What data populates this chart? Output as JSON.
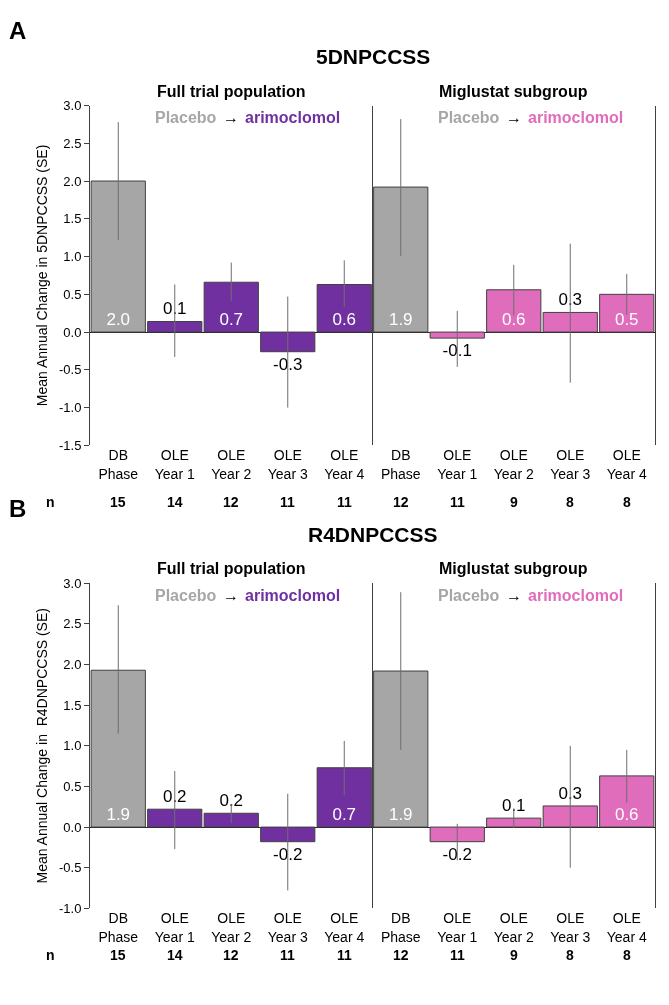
{
  "chart_data": [
    {
      "type": "bar",
      "title": "5DNPCCSS",
      "subtitle": "Full trial population",
      "ylabel": "Mean Annual Change in 5DNPCCSS (SE)",
      "categories": [
        "DB Phase",
        "OLE Year 1",
        "OLE Year 2",
        "OLE Year 3",
        "OLE Year 4"
      ],
      "series": [
        {
          "name": "Placebo",
          "color": "#a6a6a6",
          "values": [
            2.0,
            null,
            null,
            null,
            null
          ],
          "errors": [
            [
              1.22,
              2.78
            ],
            null,
            null,
            null,
            null
          ],
          "value_labels": [
            "2.0",
            null,
            null,
            null,
            null
          ]
        },
        {
          "name": "arimoclomol",
          "color": "#7030a0",
          "values": [
            null,
            0.14,
            0.66,
            -0.26,
            0.63
          ],
          "errors": [
            null,
            [
              -0.33,
              0.63
            ],
            [
              0.41,
              0.92
            ],
            [
              -1.0,
              0.47
            ],
            [
              0.33,
              0.95
            ]
          ],
          "value_labels": [
            null,
            "0.1",
            "0.7",
            "-0.3",
            "0.6"
          ]
        }
      ],
      "ylim": [
        -1.5,
        3.0
      ],
      "yticks": [
        {
          "value": -1.5,
          "label": "-1.5"
        },
        {
          "value": -1.0,
          "label": "-1.0"
        },
        {
          "value": -0.5,
          "label": "-0.5"
        },
        {
          "value": 0,
          "label": "0.0"
        },
        {
          "value": 0.5,
          "label": "0.5"
        },
        {
          "value": 1.0,
          "label": "1.0"
        },
        {
          "value": 1.5,
          "label": "1.5"
        },
        {
          "value": 2.0,
          "label": "2.0"
        },
        {
          "value": 2.5,
          "label": "2.5"
        },
        {
          "value": 3.0,
          "label": "3.0"
        }
      ],
      "annotations": [
        "A",
        "→",
        "n",
        "15",
        "14",
        "12",
        "11",
        "11"
      ],
      "legend": "top"
    },
    {
      "type": "bar",
      "subtitle": "Miglustat subgroup",
      "categories": [
        "DB Phase",
        "OLE Year 1",
        "OLE Year 2",
        "OLE Year 3",
        "OLE Year 4"
      ],
      "series": [
        {
          "name": "Placebo",
          "color": "#a6a6a6",
          "values": [
            1.92,
            null,
            null,
            null,
            null
          ],
          "errors": [
            [
              1.01,
              2.82
            ],
            null,
            null,
            null,
            null
          ],
          "value_labels": [
            "1.9",
            null,
            null,
            null,
            null
          ]
        },
        {
          "name": "arimoclomol",
          "color": "#e06cbc",
          "values": [
            null,
            -0.08,
            0.56,
            0.26,
            0.5
          ],
          "errors": [
            null,
            [
              -0.46,
              0.28
            ],
            [
              0.22,
              0.89
            ],
            [
              -0.67,
              1.17
            ],
            [
              0.23,
              0.77
            ]
          ],
          "value_labels": [
            null,
            "-0.1",
            "0.6",
            "0.3",
            "0.5"
          ]
        }
      ],
      "ylim": [
        -1.5,
        3.0
      ],
      "annotations": [
        "→",
        "12",
        "11",
        "9",
        "8",
        "8"
      ],
      "tick_labels": "x",
      "legend": "top"
    },
    {
      "type": "bar",
      "title": "R4DNPCCSS",
      "subtitle": "Full trial population",
      "ylabel": "Mean Annual Change in  R4DNPCCSS (SE)",
      "categories": [
        "DB Phase",
        "OLE Year 1",
        "OLE Year 2",
        "OLE Year 3",
        "OLE Year 4"
      ],
      "series": [
        {
          "name": "Placebo",
          "color": "#a6a6a6",
          "values": [
            1.93,
            null,
            null,
            null,
            null
          ],
          "errors": [
            [
              1.15,
              2.73
            ],
            null,
            null,
            null,
            null
          ],
          "value_labels": [
            "1.9",
            null,
            null,
            null,
            null
          ]
        },
        {
          "name": "arimoclomol",
          "color": "#7030a0",
          "values": [
            null,
            0.22,
            0.17,
            -0.18,
            0.73
          ],
          "errors": [
            null,
            [
              -0.27,
              0.69
            ],
            [
              0.05,
              0.28
            ],
            [
              -0.78,
              0.41
            ],
            [
              0.39,
              1.06
            ]
          ],
          "value_labels": [
            null,
            "0.2",
            "0.2",
            "-0.2",
            "0.7"
          ]
        }
      ],
      "ylim": [
        -1.0,
        3.0
      ],
      "yticks": [
        {
          "value": -1.0,
          "label": "-1.0"
        },
        {
          "value": -0.5,
          "label": "-0.5"
        },
        {
          "value": 0,
          "label": "0.0"
        },
        {
          "value": 0.5,
          "label": "0.5"
        },
        {
          "value": 1.0,
          "label": "1.0"
        },
        {
          "value": 1.5,
          "label": "1.5"
        },
        {
          "value": 2.0,
          "label": "2.0"
        },
        {
          "value": 2.5,
          "label": "2.5"
        },
        {
          "value": 3.0,
          "label": "3.0"
        }
      ],
      "annotations": [
        "B",
        "→",
        "n",
        "15",
        "14",
        "12",
        "11",
        "11"
      ],
      "legend": "top"
    },
    {
      "type": "bar",
      "subtitle": "Miglustat subgroup",
      "categories": [
        "DB Phase",
        "OLE Year 1",
        "OLE Year 2",
        "OLE Year 3",
        "OLE Year 4"
      ],
      "series": [
        {
          "name": "Placebo",
          "color": "#a6a6a6",
          "values": [
            1.92,
            null,
            null,
            null,
            null
          ],
          "errors": [
            [
              0.95,
              2.89
            ],
            null,
            null,
            null,
            null
          ],
          "value_labels": [
            "1.9",
            null,
            null,
            null,
            null
          ]
        },
        {
          "name": "arimoclomol",
          "color": "#e06cbc",
          "values": [
            null,
            -0.18,
            0.11,
            0.26,
            0.63
          ],
          "errors": [
            null,
            [
              -0.41,
              0.04
            ],
            [
              -0.01,
              0.23
            ],
            [
              -0.5,
              1.0
            ],
            [
              0.3,
              0.95
            ]
          ],
          "value_labels": [
            null,
            "-0.2",
            "0.1",
            "0.3",
            "0.6"
          ]
        }
      ],
      "ylim": [
        -1.0,
        3.0
      ],
      "annotations": [
        "→",
        "12",
        "11",
        "9",
        "8",
        "8"
      ],
      "tick_labels": "x",
      "legend": "top"
    }
  ]
}
